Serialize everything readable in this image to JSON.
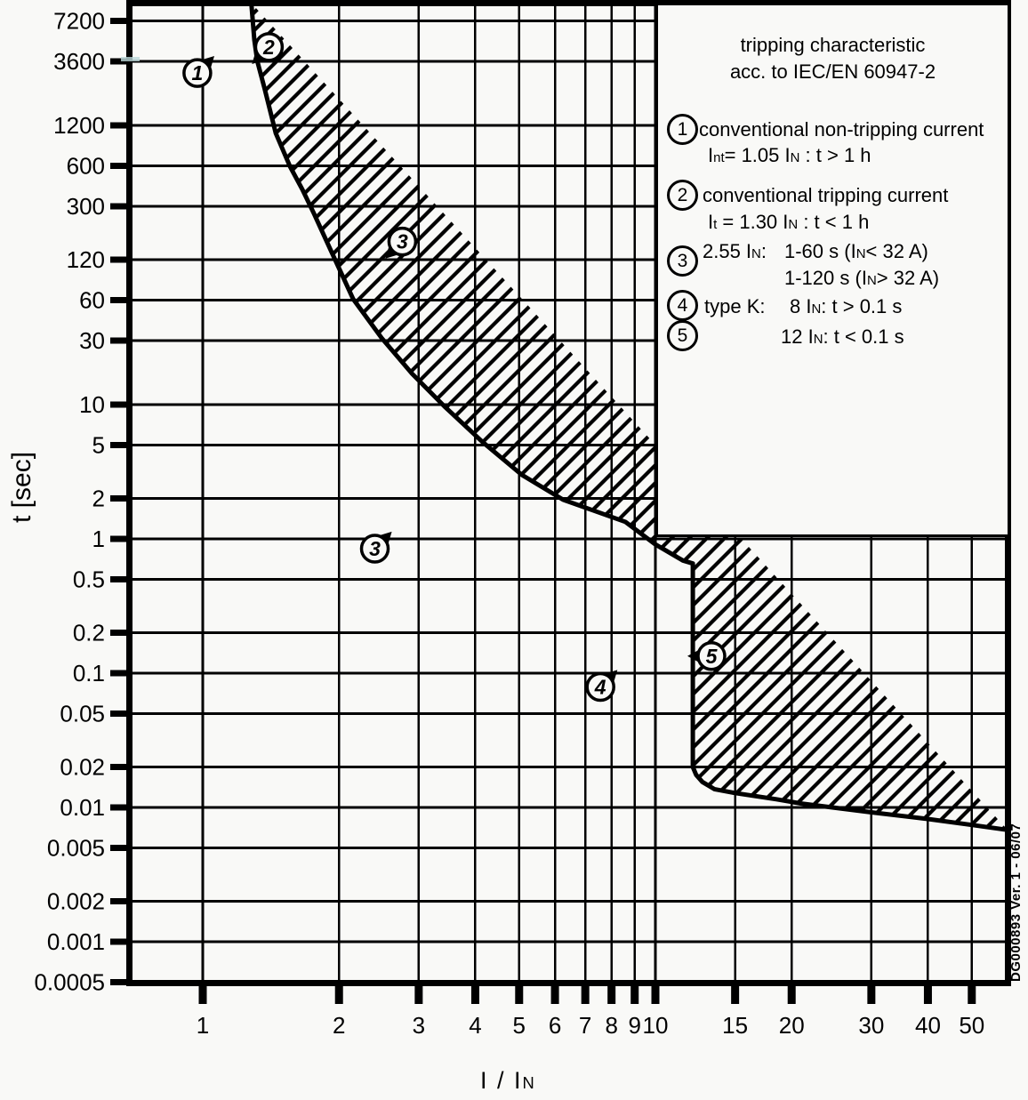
{
  "legend": {
    "title_line1": "tripping characteristic",
    "title_line2": "acc. to IEC/EN 60947-2",
    "items": [
      {
        "num": "1",
        "line1": "conventional non-tripping current",
        "line2": "I~nt~= 1.05 I~N~ : t > 1 h"
      },
      {
        "num": "2",
        "line1": "conventional tripping current",
        "line2": "I~t~ = 1.30 I~N~ : t < 1 h"
      },
      {
        "num": "3",
        "label": "2.55 I~N~:",
        "line1": "1-60 s (I~N~< 32 A)",
        "line2": "1-120 s (I~N~> 32 A)"
      },
      {
        "num": "4",
        "label": "type K:",
        "line1": "8 I~N~: t > 0.1 s"
      },
      {
        "num": "5",
        "line1": "12 I~N~: t < 0.1 s"
      }
    ]
  },
  "axis_titles": {
    "y": "t [sec]",
    "x": "I / I~N~"
  },
  "stamp": "DG000893 Ver. 1 - 06/07",
  "chart_data": {
    "type": "area",
    "title": "tripping characteristic acc. to IEC/EN 60947-2",
    "xlabel": "I / IN",
    "ylabel": "t [sec]",
    "x_scale": "log",
    "y_scale": "log",
    "x_range": [
      0.69,
      60
    ],
    "y_range": [
      0.0005,
      9800
    ],
    "x_ticks": [
      1,
      2,
      3,
      4,
      5,
      6,
      7,
      8,
      9,
      10,
      15,
      20,
      30,
      40,
      50
    ],
    "y_ticks": [
      7200,
      3600,
      1200,
      600,
      300,
      120,
      60,
      30,
      10,
      5,
      2,
      1,
      0.5,
      0.2,
      0.1,
      0.05,
      0.02,
      0.01,
      0.005,
      0.002,
      0.001,
      0.0005
    ],
    "grid": true,
    "band_upper_boundary": [
      [
        1.28,
        9800
      ],
      [
        1.3,
        5200
      ],
      [
        1.32,
        3600
      ],
      [
        1.37,
        2250
      ],
      [
        1.45,
        1050
      ],
      [
        1.56,
        590
      ],
      [
        1.66,
        400
      ],
      [
        1.76,
        265
      ],
      [
        1.95,
        125
      ],
      [
        2.15,
        61
      ],
      [
        2.49,
        31
      ],
      [
        2.9,
        17
      ],
      [
        3.42,
        9.7
      ],
      [
        4.14,
        5.3
      ],
      [
        5.07,
        3.0
      ],
      [
        6.25,
        1.96
      ],
      [
        7.4,
        1.6
      ],
      [
        8.58,
        1.34
      ],
      [
        10.0,
        0.91
      ],
      [
        11.5,
        0.69
      ],
      [
        12.1,
        0.655
      ],
      [
        12.1,
        0.02
      ],
      [
        12.3,
        0.0175
      ],
      [
        12.7,
        0.0155
      ],
      [
        13.5,
        0.0137
      ],
      [
        15,
        0.0128
      ],
      [
        18.5,
        0.0115
      ],
      [
        21,
        0.0107
      ],
      [
        30,
        0.0092
      ],
      [
        40,
        0.0082
      ],
      [
        50,
        0.0074
      ],
      [
        60,
        0.0068
      ]
    ],
    "band_lower_boundary": [
      [
        1.09,
        9800
      ],
      [
        1.1,
        3600
      ],
      [
        1.12,
        1500
      ],
      [
        1.17,
        620
      ],
      [
        1.25,
        310
      ],
      [
        1.385,
        124
      ],
      [
        1.6,
        50
      ],
      [
        1.8,
        31
      ],
      [
        2.02,
        19
      ],
      [
        2.28,
        10.3
      ],
      [
        2.77,
        5.0
      ],
      [
        3.23,
        3.05
      ],
      [
        3.97,
        1.93
      ],
      [
        4.92,
        1.15
      ],
      [
        6.36,
        0.69
      ],
      [
        7.06,
        0.51
      ],
      [
        8.15,
        0.375
      ],
      [
        8.15,
        0.0105
      ],
      [
        8.35,
        0.0072
      ],
      [
        8.85,
        0.0051
      ],
      [
        9.54,
        0.0039
      ],
      [
        10.6,
        0.003
      ],
      [
        12.1,
        0.0025
      ],
      [
        15,
        0.0022
      ],
      [
        20.2,
        0.002
      ],
      [
        30,
        0.0017
      ],
      [
        40,
        0.0015
      ],
      [
        50,
        0.00135
      ],
      [
        60,
        0.00125
      ]
    ],
    "markers": [
      {
        "label": "1",
        "x": 0.973,
        "t": 2950,
        "pointer": "ne"
      },
      {
        "label": "2",
        "x": 1.4,
        "t": 4600,
        "pointer": "sw"
      },
      {
        "label": "3",
        "x": 2.76,
        "t": 164,
        "pointer": "sw"
      },
      {
        "label": "3",
        "x": 2.4,
        "t": 0.846,
        "pointer": "ne"
      },
      {
        "label": "4",
        "x": 7.56,
        "t": 0.079,
        "pointer": "ne"
      },
      {
        "label": "5",
        "x": 13.3,
        "t": 0.134,
        "pointer": "w"
      }
    ]
  }
}
